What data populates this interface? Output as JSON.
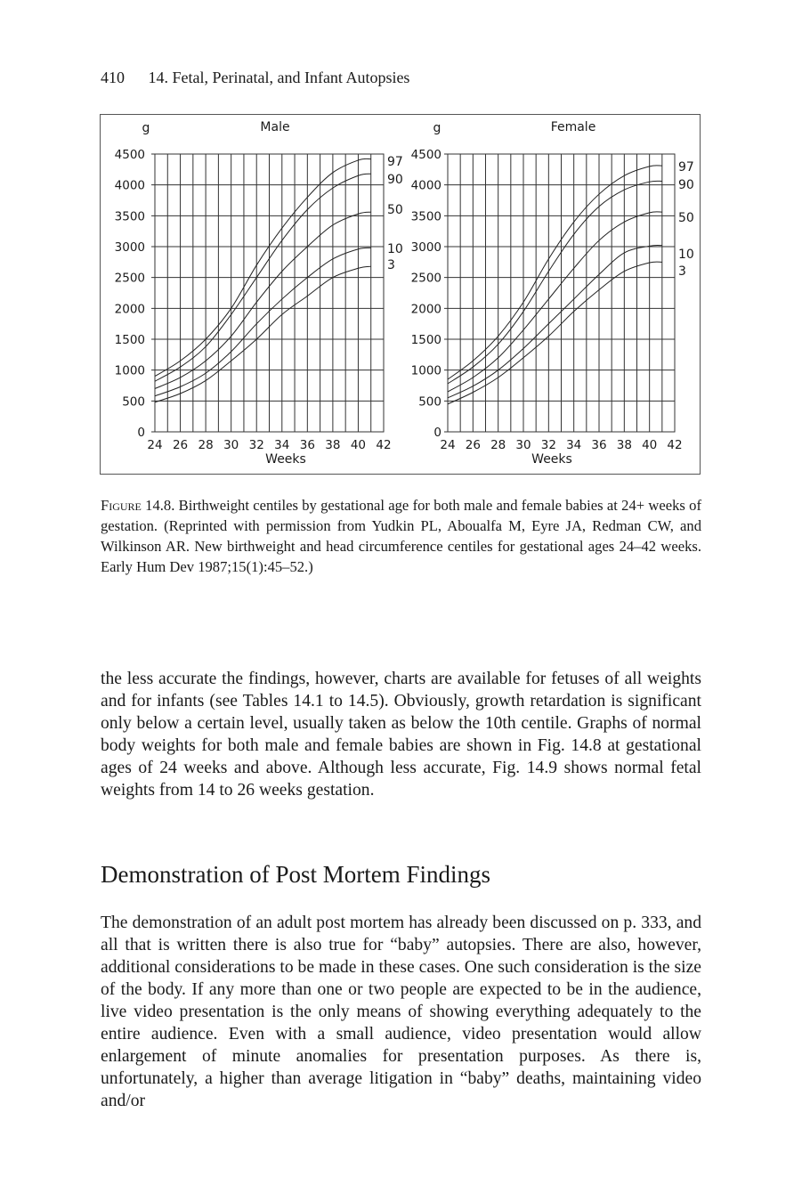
{
  "header": {
    "page_number": "410",
    "chapter_title": "14. Fetal, Perinatal, and Infant Autopsies"
  },
  "figure": {
    "label": "Figure 14.8.",
    "caption": "Birthweight centiles by gestational age for both male and female babies at 24+ weeks of gestation. (Reprinted with permission from Yudkin PL, Aboualfa M, Eyre JA, Redman CW, and Wilkinson AR. New birthweight and head circumference centiles for gestational ages 24–42 weeks. Early Hum Dev 1987;15(1):45–52.)"
  },
  "chart_data": [
    {
      "type": "line",
      "title": "Male",
      "xlabel": "Weeks",
      "ylabel": "g",
      "xlim": [
        24,
        42
      ],
      "ylim": [
        0,
        4500
      ],
      "x_ticks": [
        "24",
        "26",
        "28",
        "30",
        "32",
        "34",
        "36",
        "38",
        "40",
        "42"
      ],
      "y_ticks": [
        "0",
        "500",
        "1000",
        "1500",
        "2000",
        "2500",
        "3000",
        "3500",
        "4000",
        "4500"
      ],
      "grid": true,
      "x": [
        24,
        26,
        28,
        30,
        32,
        34,
        36,
        38,
        40,
        41
      ],
      "series": [
        {
          "name": "97",
          "values": [
            900,
            1150,
            1500,
            2000,
            2700,
            3300,
            3800,
            4200,
            4400,
            4420
          ]
        },
        {
          "name": "90",
          "values": [
            820,
            1050,
            1380,
            1900,
            2500,
            3100,
            3600,
            3950,
            4150,
            4180
          ]
        },
        {
          "name": "50",
          "values": [
            700,
            880,
            1150,
            1550,
            2100,
            2600,
            3000,
            3350,
            3530,
            3560
          ]
        },
        {
          "name": "10",
          "values": [
            580,
            730,
            950,
            1300,
            1750,
            2150,
            2500,
            2800,
            2960,
            2980
          ]
        },
        {
          "name": "3",
          "values": [
            480,
            620,
            830,
            1150,
            1500,
            1900,
            2200,
            2500,
            2650,
            2680
          ]
        }
      ]
    },
    {
      "type": "line",
      "title": "Female",
      "xlabel": "Weeks",
      "ylabel": "g",
      "xlim": [
        24,
        42
      ],
      "ylim": [
        0,
        4500
      ],
      "x_ticks": [
        "24",
        "26",
        "28",
        "30",
        "32",
        "34",
        "36",
        "38",
        "40",
        "42"
      ],
      "y_ticks": [
        "0",
        "500",
        "1000",
        "1500",
        "2000",
        "2500",
        "3000",
        "3500",
        "4000",
        "4500"
      ],
      "grid": true,
      "x": [
        24,
        26,
        28,
        30,
        32,
        34,
        36,
        38,
        40,
        41
      ],
      "series": [
        {
          "name": "97",
          "values": [
            850,
            1150,
            1550,
            2100,
            2800,
            3400,
            3850,
            4150,
            4300,
            4310
          ]
        },
        {
          "name": "90",
          "values": [
            780,
            1050,
            1420,
            1950,
            2600,
            3200,
            3650,
            3920,
            4050,
            4060
          ]
        },
        {
          "name": "50",
          "values": [
            650,
            880,
            1200,
            1650,
            2150,
            2650,
            3100,
            3400,
            3550,
            3560
          ]
        },
        {
          "name": "10",
          "values": [
            550,
            740,
            1000,
            1350,
            1750,
            2150,
            2550,
            2900,
            3010,
            3020
          ]
        },
        {
          "name": "3",
          "values": [
            450,
            640,
            880,
            1200,
            1550,
            1950,
            2300,
            2600,
            2740,
            2750
          ]
        }
      ]
    }
  ],
  "body": {
    "paragraph1": "the less accurate the findings, however, charts are available for fetuses of all weights and for infants (see Tables 14.1 to 14.5). Obviously, growth retardation is significant only below a certain level, usually taken as below the 10th centile. Graphs of normal body weights for both male and female babies are shown in Fig. 14.8 at gestational ages of 24 weeks and above. Although less accurate, Fig. 14.9 shows normal fetal weights from 14 to 26 weeks gestation.",
    "section_heading": "Demonstration of Post Mortem Findings",
    "paragraph2": "The demonstration of an adult post mortem has already been discussed on p. 333, and all that is written there is also true for “baby” autopsies. There are also, however, additional considerations to be made in these cases. One such consideration is the size of the body. If any more than one or two people are expected to be in the audience, live video presentation is the only means of showing everything adequately to the entire audience. Even with a small audience, video presentation would allow enlargement of minute anomalies for presentation purposes. As there is, unfortunately, a higher than average litigation in “baby” deaths, maintaining video and/or"
  }
}
